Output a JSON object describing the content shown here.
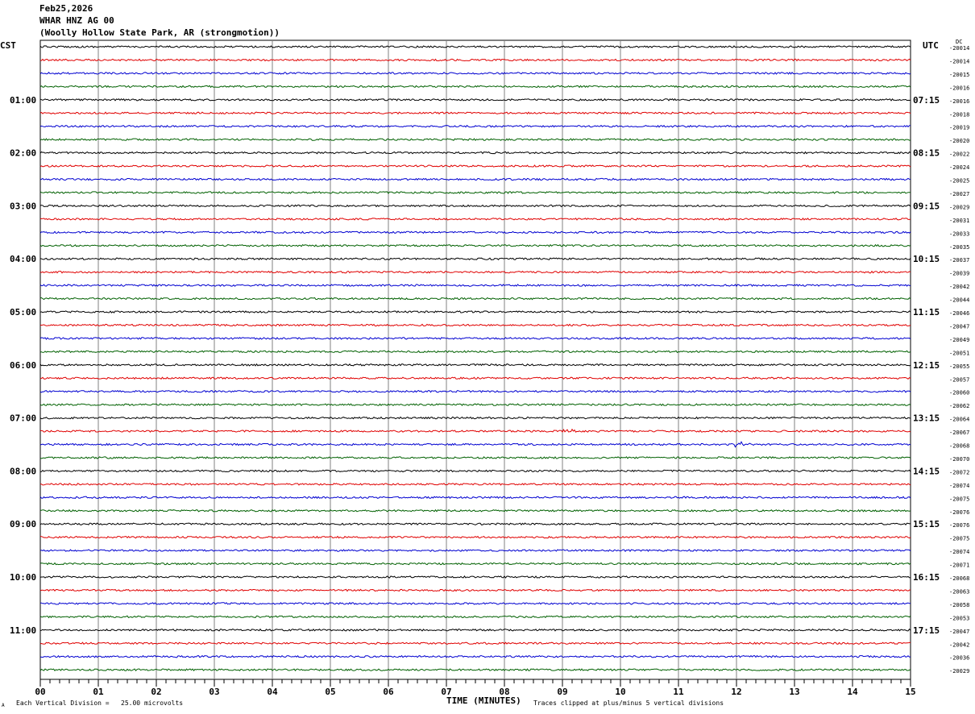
{
  "header": {
    "date": "Feb25,2026",
    "station": "WHAR HNZ AG 00",
    "location": "(Woolly Hollow State Park, AR (strongmotion))"
  },
  "left_timezone": "CST",
  "right_timezone": "UTC",
  "dc_header": "DC",
  "footer": {
    "scale_note": "Each Vertical Division =   25.00 microvolts",
    "clip_note": "Traces clipped at plus/minus 5 vertical divisions",
    "corner_mark": "A"
  },
  "chart_data": {
    "type": "line",
    "title": "",
    "xlabel": "TIME (MINUTES)",
    "x_range": [
      0,
      15
    ],
    "x_ticks": [
      "00",
      "01",
      "02",
      "03",
      "04",
      "05",
      "06",
      "07",
      "08",
      "09",
      "10",
      "11",
      "12",
      "13",
      "14",
      "15"
    ],
    "grid": true,
    "trace_colors": [
      "#000000",
      "#e00000",
      "#0000d0",
      "#006000"
    ],
    "traces_per_hour": 4,
    "hour_labels_left": [
      "01:00",
      "02:00",
      "03:00",
      "04:00",
      "05:00",
      "06:00",
      "07:00",
      "08:00",
      "09:00",
      "10:00",
      "11:00"
    ],
    "hour_labels_right": [
      "07:15",
      "08:15",
      "09:15",
      "10:15",
      "11:15",
      "12:15",
      "13:15",
      "14:15",
      "15:15",
      "16:15",
      "17:15"
    ],
    "dc_offsets": [
      "-20014",
      "-20014",
      "-20015",
      "-20016",
      "-20016",
      "-20018",
      "-20019",
      "-20020",
      "-20022",
      "-20024",
      "-20025",
      "-20027",
      "-20029",
      "-20031",
      "-20033",
      "-20035",
      "-20037",
      "-20039",
      "-20042",
      "-20044",
      "-20046",
      "-20047",
      "-20049",
      "-20051",
      "-20055",
      "-20057",
      "-20060",
      "-20062",
      "-20064",
      "-20067",
      "-20068",
      "-20070",
      "-20072",
      "-20074",
      "-20075",
      "-20076",
      "-20076",
      "-20075",
      "-20074",
      "-20071",
      "-20068",
      "-20063",
      "-20058",
      "-20053",
      "-20047",
      "-20042",
      "-20036",
      "-20029"
    ],
    "events": [
      {
        "trace": 29,
        "minute": 9.05,
        "amplitude": 5
      },
      {
        "trace": 30,
        "minute": 12.0,
        "amplitude": 7
      }
    ]
  }
}
